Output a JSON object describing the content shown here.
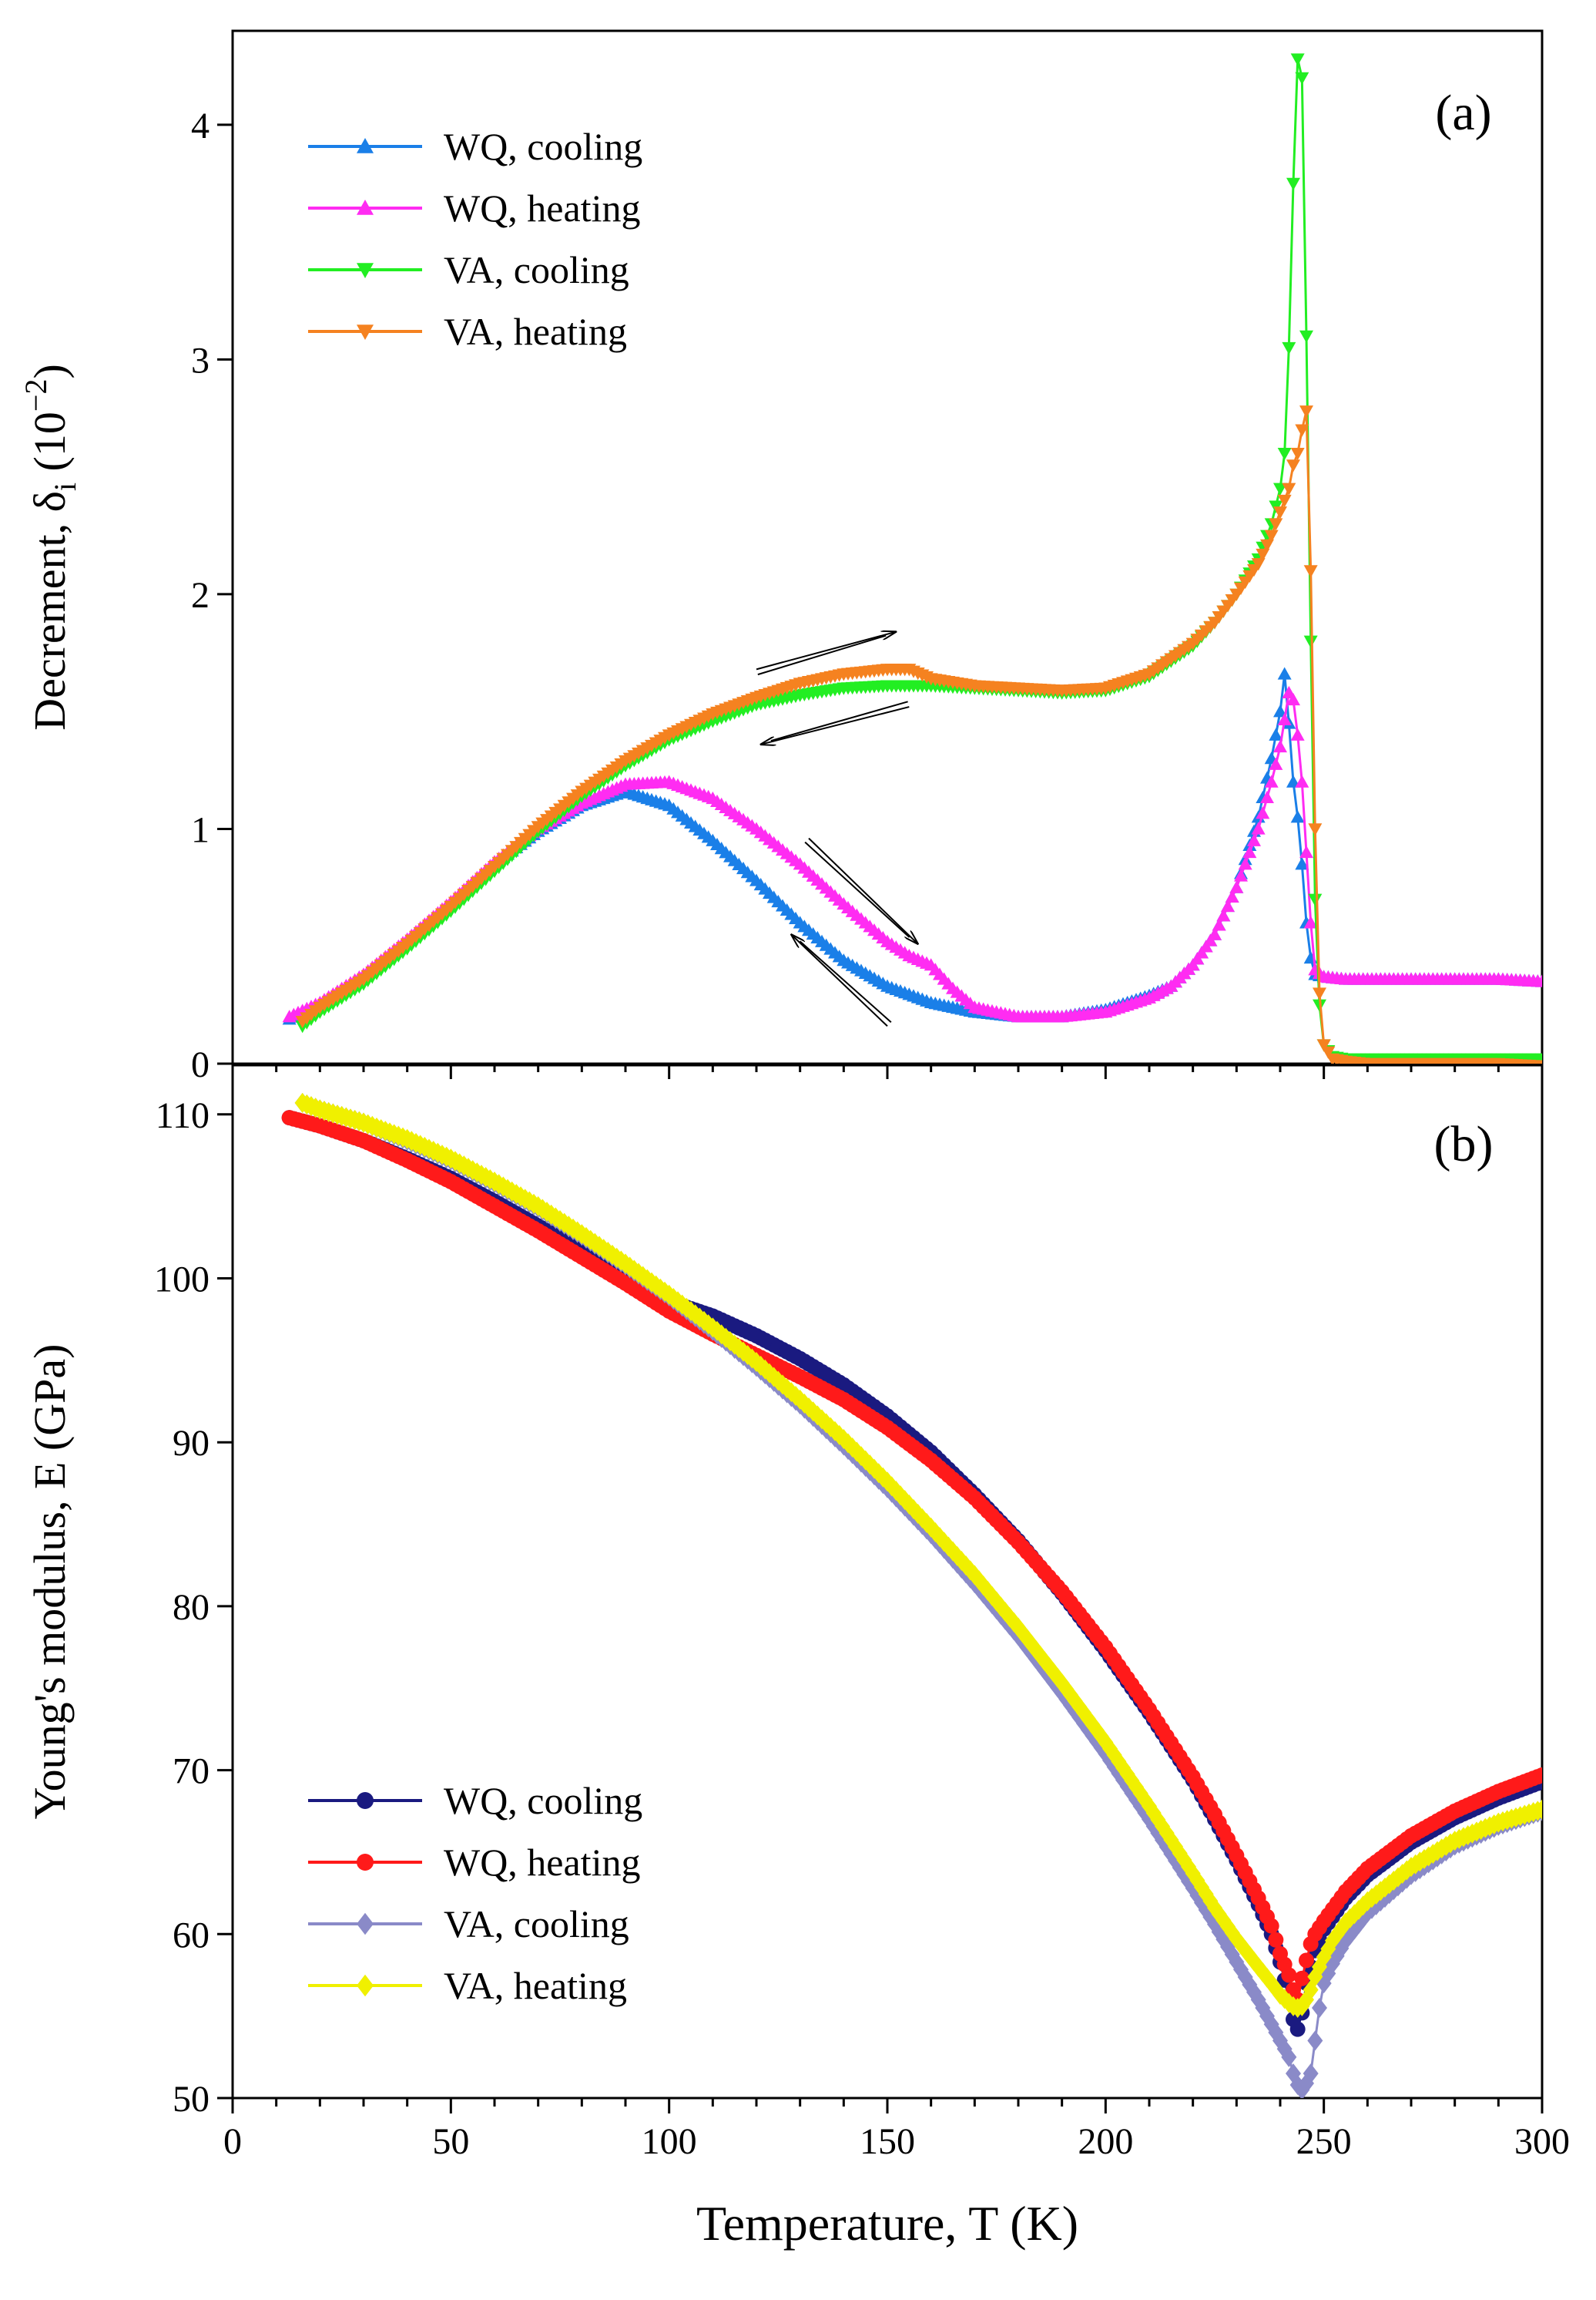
{
  "chart_data": [
    {
      "id": "a",
      "type": "line",
      "panel_label": "(a)",
      "xlabel": "Temperature, T (K)",
      "ylabel": "Decrement, δ_i (10^-2)",
      "ylabel_parts": {
        "main": "Decrement, δ",
        "sub": "i",
        "unit_open": " (10",
        "sup": "−2",
        "unit_close": ")"
      },
      "xlim": [
        0,
        300
      ],
      "ylim": [
        0,
        4.4
      ],
      "yticks": [
        0,
        1,
        2,
        3,
        4
      ],
      "ytick_labels": [
        "0",
        "1",
        "2",
        "3",
        "4"
      ],
      "legend_position": "top-left",
      "series": [
        {
          "name": "WQ, cooling",
          "color": "#1a7fe8",
          "marker": "triangle-up",
          "x": [
            13,
            20,
            30,
            40,
            50,
            60,
            70,
            80,
            90,
            100,
            110,
            120,
            130,
            140,
            150,
            160,
            170,
            180,
            190,
            200,
            205,
            210,
            215,
            220,
            225,
            230,
            235,
            238,
            240,
            241,
            242,
            243,
            244,
            245,
            246,
            247,
            248,
            250,
            255,
            260,
            270,
            280,
            290,
            300
          ],
          "y": [
            0.19,
            0.25,
            0.37,
            0.52,
            0.68,
            0.85,
            0.99,
            1.1,
            1.16,
            1.1,
            0.95,
            0.78,
            0.6,
            0.44,
            0.33,
            0.26,
            0.22,
            0.2,
            0.2,
            0.23,
            0.26,
            0.29,
            0.33,
            0.42,
            0.55,
            0.75,
            1.05,
            1.3,
            1.5,
            1.66,
            1.45,
            1.2,
            1.05,
            0.85,
            0.6,
            0.45,
            0.38,
            0.37,
            0.36,
            0.36,
            0.36,
            0.36,
            0.36,
            0.35
          ]
        },
        {
          "name": "WQ, heating",
          "color": "#ff2cf2",
          "marker": "triangle-up",
          "x": [
            13,
            20,
            30,
            40,
            50,
            60,
            70,
            80,
            90,
            100,
            110,
            120,
            130,
            140,
            150,
            155,
            160,
            165,
            170,
            180,
            190,
            200,
            210,
            215,
            220,
            225,
            230,
            235,
            238,
            240,
            242,
            243,
            244,
            245,
            246,
            247,
            248,
            250,
            255,
            260,
            270,
            280,
            290,
            300
          ],
          "y": [
            0.2,
            0.26,
            0.38,
            0.53,
            0.69,
            0.86,
            1.0,
            1.11,
            1.19,
            1.2,
            1.13,
            1.0,
            0.85,
            0.68,
            0.52,
            0.46,
            0.42,
            0.32,
            0.24,
            0.2,
            0.2,
            0.22,
            0.28,
            0.33,
            0.42,
            0.55,
            0.75,
            1.0,
            1.2,
            1.35,
            1.58,
            1.55,
            1.4,
            1.2,
            0.9,
            0.6,
            0.4,
            0.37,
            0.36,
            0.36,
            0.36,
            0.36,
            0.36,
            0.35
          ]
        },
        {
          "name": "VA, cooling",
          "color": "#22ee22",
          "marker": "triangle-down",
          "x": [
            16,
            20,
            30,
            40,
            50,
            60,
            70,
            80,
            90,
            100,
            110,
            120,
            130,
            140,
            150,
            160,
            170,
            180,
            190,
            200,
            210,
            220,
            225,
            230,
            235,
            238,
            240,
            241,
            242,
            243,
            244,
            245,
            246,
            247,
            248,
            249,
            250,
            252,
            255,
            260,
            270,
            280,
            290,
            300
          ],
          "y": [
            0.16,
            0.22,
            0.34,
            0.49,
            0.65,
            0.82,
            0.99,
            1.14,
            1.27,
            1.38,
            1.46,
            1.53,
            1.57,
            1.6,
            1.61,
            1.61,
            1.6,
            1.59,
            1.58,
            1.59,
            1.65,
            1.78,
            1.88,
            2.0,
            2.15,
            2.3,
            2.45,
            2.6,
            3.05,
            3.75,
            4.28,
            4.2,
            3.1,
            1.8,
            0.7,
            0.25,
            0.08,
            0.03,
            0.02,
            0.02,
            0.02,
            0.02,
            0.02,
            0.02
          ]
        },
        {
          "name": "VA, heating",
          "color": "#f58220",
          "marker": "triangle-down",
          "x": [
            16,
            20,
            30,
            40,
            50,
            60,
            70,
            80,
            90,
            100,
            110,
            120,
            130,
            140,
            150,
            155,
            160,
            170,
            180,
            190,
            200,
            210,
            220,
            225,
            230,
            235,
            238,
            240,
            242,
            243,
            244,
            245,
            246,
            247,
            248,
            249,
            250,
            252,
            255,
            260,
            270,
            280,
            290,
            300
          ],
          "y": [
            0.18,
            0.24,
            0.36,
            0.51,
            0.67,
            0.84,
            1.01,
            1.16,
            1.29,
            1.4,
            1.49,
            1.56,
            1.62,
            1.66,
            1.68,
            1.68,
            1.64,
            1.61,
            1.6,
            1.59,
            1.6,
            1.66,
            1.79,
            1.88,
            2.0,
            2.13,
            2.25,
            2.35,
            2.45,
            2.55,
            2.6,
            2.7,
            2.78,
            2.1,
            1.0,
            0.3,
            0.08,
            0.02,
            0.01,
            0.0,
            0.0,
            0.0,
            0.0,
            -0.01
          ]
        }
      ],
      "annotations": [
        {
          "type": "arrow",
          "direction": "heating",
          "from": [
            120,
            1.68
          ],
          "to": [
            152,
            1.84
          ]
        },
        {
          "type": "arrow",
          "direction": "cooling",
          "from": [
            155,
            1.52
          ],
          "to": [
            121,
            1.36
          ]
        },
        {
          "type": "arrow",
          "direction": "heating",
          "from": [
            132,
            0.96
          ],
          "to": [
            157,
            0.51
          ]
        },
        {
          "type": "arrow",
          "direction": "cooling",
          "from": [
            150,
            0.16
          ],
          "to": [
            128,
            0.55
          ]
        }
      ]
    },
    {
      "id": "b",
      "type": "line",
      "panel_label": "(b)",
      "xlabel": "Temperature, T (K)",
      "ylabel": "Young's modulus, E (GPa)",
      "xlim": [
        0,
        300
      ],
      "ylim": [
        50,
        113
      ],
      "xticks": [
        0,
        50,
        100,
        150,
        200,
        250,
        300
      ],
      "xtick_labels": [
        "0",
        "50",
        "100",
        "150",
        "200",
        "250",
        "300"
      ],
      "yticks": [
        50,
        60,
        70,
        80,
        90,
        100,
        110
      ],
      "ytick_labels": [
        "50",
        "60",
        "70",
        "80",
        "90",
        "100",
        "110"
      ],
      "legend_position": "bottom-left",
      "series": [
        {
          "name": "WQ, cooling",
          "color": "#1a1a80",
          "marker": "circle",
          "x": [
            13,
            20,
            30,
            40,
            50,
            60,
            70,
            80,
            90,
            100,
            110,
            120,
            130,
            140,
            150,
            160,
            170,
            180,
            190,
            200,
            210,
            220,
            225,
            230,
            235,
            238,
            240,
            241,
            242,
            243,
            244,
            245,
            246,
            247,
            248,
            250,
            255,
            260,
            270,
            280,
            290,
            300
          ],
          "y": [
            109.8,
            109.3,
            108.4,
            107.3,
            106.1,
            104.7,
            103.2,
            101.7,
            100.1,
            98.6,
            97.7,
            96.5,
            95.1,
            93.5,
            91.6,
            89.4,
            86.8,
            84.0,
            80.8,
            77.3,
            73.5,
            69.4,
            67.0,
            64.5,
            61.8,
            60.0,
            58.3,
            57.2,
            56.0,
            54.8,
            54.2,
            55.2,
            57.0,
            58.0,
            59.0,
            60.3,
            62.2,
            63.6,
            65.6,
            67.1,
            68.3,
            69.3
          ]
        },
        {
          "name": "WQ, heating",
          "color": "#ff1a1a",
          "marker": "circle",
          "x": [
            13,
            20,
            30,
            40,
            50,
            60,
            70,
            80,
            90,
            100,
            110,
            120,
            130,
            140,
            150,
            160,
            170,
            180,
            190,
            200,
            210,
            220,
            225,
            230,
            235,
            238,
            240,
            242,
            243,
            244,
            245,
            246,
            247,
            248,
            250,
            255,
            260,
            270,
            280,
            290,
            300
          ],
          "y": [
            109.8,
            109.3,
            108.4,
            107.2,
            105.9,
            104.4,
            102.9,
            101.3,
            99.7,
            98.0,
            96.6,
            95.3,
            94.0,
            92.6,
            90.9,
            88.9,
            86.6,
            83.9,
            80.9,
            77.5,
            73.7,
            69.6,
            67.3,
            64.8,
            62.2,
            60.5,
            58.8,
            57.5,
            56.6,
            56.0,
            57.3,
            58.4,
            59.4,
            60.0,
            60.8,
            62.6,
            64.0,
            66.0,
            67.5,
            68.7,
            69.7
          ]
        },
        {
          "name": "VA, cooling",
          "color": "#8a8ac8",
          "marker": "diamond",
          "x": [
            16,
            20,
            30,
            40,
            50,
            60,
            70,
            80,
            90,
            100,
            110,
            120,
            130,
            140,
            150,
            160,
            170,
            180,
            190,
            200,
            210,
            220,
            225,
            230,
            235,
            238,
            240,
            242,
            243,
            244,
            245,
            246,
            247,
            248,
            249,
            250,
            252,
            255,
            260,
            270,
            280,
            290,
            300
          ],
          "y": [
            110.7,
            110.3,
            109.5,
            108.4,
            107.2,
            105.8,
            104.3,
            102.6,
            100.8,
            98.9,
            96.8,
            94.6,
            92.3,
            89.8,
            87.2,
            84.4,
            81.4,
            78.2,
            74.7,
            71.0,
            67.0,
            62.8,
            60.6,
            58.3,
            56.0,
            54.5,
            53.5,
            52.5,
            51.5,
            50.8,
            50.5,
            50.9,
            51.5,
            53.5,
            55.5,
            57.0,
            58.2,
            59.6,
            61.3,
            63.6,
            65.4,
            66.6,
            67.5
          ]
        },
        {
          "name": "VA, heating",
          "color": "#f0f000",
          "marker": "diamond",
          "x": [
            16,
            20,
            30,
            40,
            50,
            60,
            70,
            80,
            90,
            100,
            110,
            120,
            130,
            140,
            150,
            160,
            170,
            180,
            190,
            200,
            210,
            220,
            225,
            230,
            235,
            238,
            240,
            242,
            243,
            244,
            245,
            246,
            247,
            248,
            249,
            250,
            252,
            255,
            260,
            270,
            280,
            290,
            300
          ],
          "y": [
            110.7,
            110.3,
            109.5,
            108.5,
            107.3,
            105.9,
            104.4,
            102.7,
            100.9,
            99.0,
            97.0,
            94.9,
            92.6,
            90.2,
            87.6,
            84.8,
            81.9,
            78.7,
            75.3,
            71.7,
            67.8,
            63.7,
            61.6,
            59.7,
            58.0,
            57.0,
            56.3,
            55.8,
            55.6,
            55.5,
            55.6,
            56.0,
            56.6,
            57.4,
            58.0,
            58.6,
            59.6,
            60.7,
            62.0,
            64.1,
            65.7,
            66.8,
            67.6
          ]
        }
      ]
    }
  ]
}
